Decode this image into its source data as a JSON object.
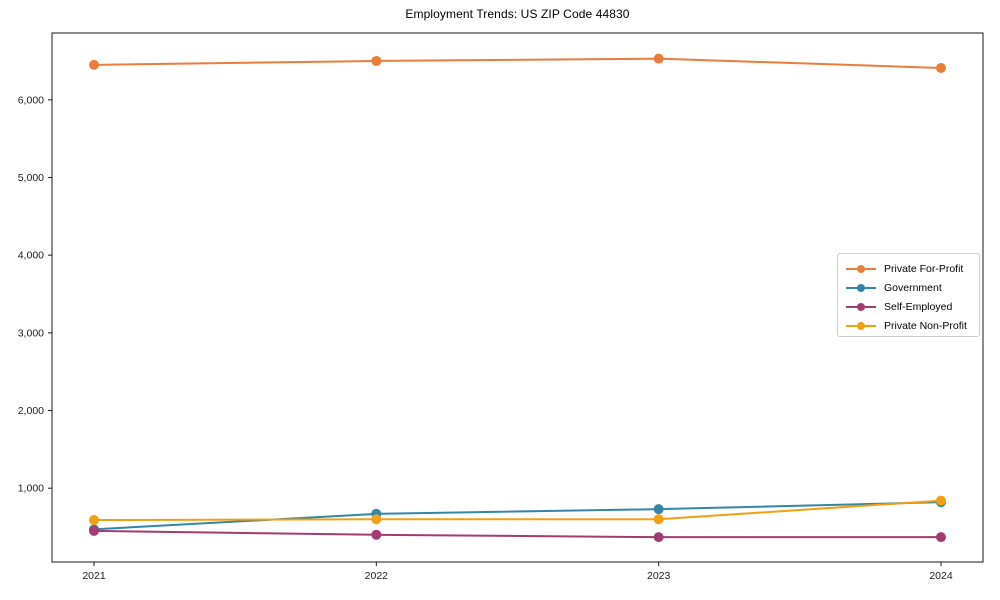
{
  "title": "Employment Trends: US ZIP Code 44830",
  "chart_data": {
    "type": "line",
    "title": "Employment Trends: US ZIP Code 44830",
    "xlabel": "",
    "ylabel": "",
    "x": [
      2021,
      2022,
      2023,
      2024
    ],
    "x_tick_labels": [
      "2021",
      "2022",
      "2023",
      "2024"
    ],
    "y_ticks": [
      1000,
      2000,
      3000,
      4000,
      5000,
      6000
    ],
    "y_tick_labels": [
      "1,000",
      "2,000",
      "3,000",
      "4,000",
      "5,000",
      "6,000"
    ],
    "ylim": [
      50,
      6860
    ],
    "grid": false,
    "legend_position": "center-right",
    "marker": "circle",
    "series": [
      {
        "name": "Private For-Profit",
        "color": "#E87D3C",
        "values": [
          6450,
          6500,
          6530,
          6410
        ]
      },
      {
        "name": "Government",
        "color": "#3286A8",
        "values": [
          470,
          670,
          730,
          820
        ]
      },
      {
        "name": "Self-Employed",
        "color": "#A23B72",
        "values": [
          450,
          400,
          370,
          370
        ]
      },
      {
        "name": "Private Non-Profit",
        "color": "#F0A010",
        "values": [
          590,
          600,
          600,
          840
        ]
      }
    ]
  },
  "colors": {
    "axis": "#1a1a1a",
    "tick_label": "#1a1a1a",
    "legend_border": "#cccccc",
    "background": "#ffffff"
  }
}
